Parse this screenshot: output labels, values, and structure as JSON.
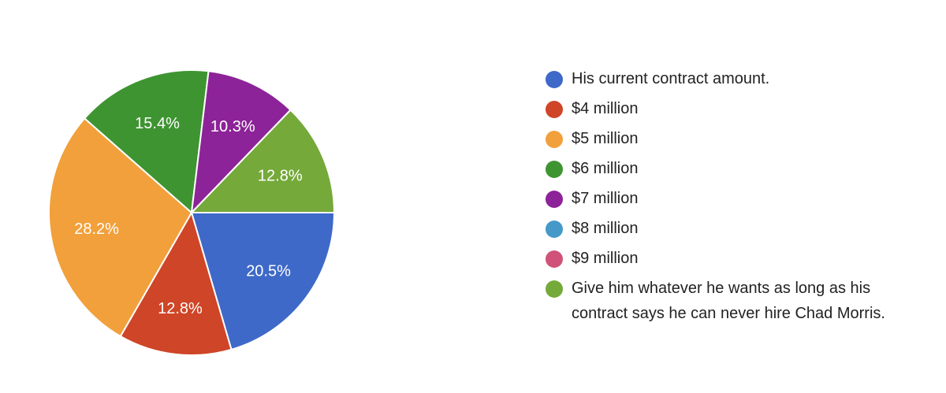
{
  "chart_data": {
    "type": "pie",
    "title": "",
    "start_angle_deg": 90,
    "legend_position": "right",
    "slices": [
      {
        "label": "His current contract amount.",
        "value": 20.5,
        "display": "20.5%",
        "color": "#3e69c9"
      },
      {
        "label": "$4 million",
        "value": 12.8,
        "display": "12.8%",
        "color": "#cf4527"
      },
      {
        "label": "$5 million",
        "value": 28.2,
        "display": "28.2%",
        "color": "#f2a03b"
      },
      {
        "label": "$6 million",
        "value": 15.4,
        "display": "15.4%",
        "color": "#3e9431"
      },
      {
        "label": "$7 million",
        "value": 10.3,
        "display": "10.3%",
        "color": "#8d2398"
      },
      {
        "label": "$8 million",
        "value": 0,
        "display": "",
        "color": "#4599c9"
      },
      {
        "label": "$9 million",
        "value": 0,
        "display": "",
        "color": "#d05279"
      },
      {
        "label": "Give him whatever he wants as long as his contract says he can never hire Chad Morris.",
        "value": 12.8,
        "display": "12.8%",
        "color": "#75a93a"
      }
    ]
  }
}
